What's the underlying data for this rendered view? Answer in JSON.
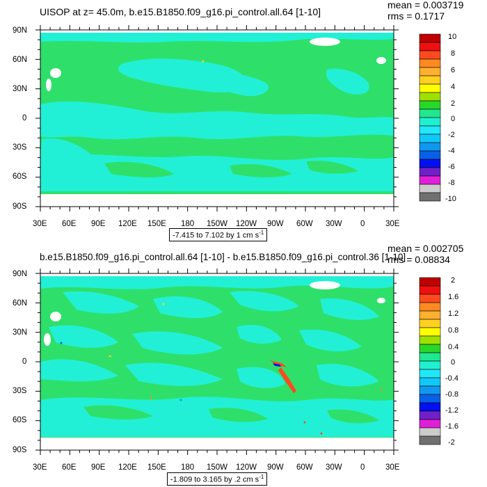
{
  "panels": [
    {
      "title": "UISOP at z=  45.0m, b.e15.B1850.f09_g16.pi_control.all.64 [1-10]",
      "mean": "mean = 0.003719",
      "rms": "rms = 0.1717",
      "contour_info": "-7.415 to 7.102 by 1 cm s",
      "contour_info_exp": "-1",
      "colorbar_labels": [
        "10",
        "8",
        "6",
        "4",
        "2",
        "0",
        "-2",
        "-4",
        "-6",
        "-8",
        "-10"
      ]
    },
    {
      "title": "b.e15.B1850.f09_g16.pi_control.all.64 [1-10] - b.e15.B1850.f09_g16.pi_control.36 [1-10]",
      "mean": "mean = 0.002705",
      "rms": "rms = 0.08834",
      "contour_info": "-1.809 to 3.165 by .2 cm s",
      "contour_info_exp": "-1",
      "colorbar_labels": [
        "2",
        "1.6",
        "1.2",
        "0.8",
        "0.4",
        "0",
        "-0.4",
        "-0.8",
        "-1.2",
        "-1.6",
        "-2"
      ]
    }
  ],
  "lat_labels": [
    "90N",
    "60N",
    "30N",
    "0",
    "30S",
    "60S",
    "90S"
  ],
  "lon_labels": [
    "30E",
    "60E",
    "90E",
    "120E",
    "150E",
    "180",
    "150W",
    "120W",
    "90W",
    "60W",
    "30W",
    "0",
    "30E"
  ],
  "colorbar_colors": [
    "#c00000",
    "#ee1010",
    "#ff4a20",
    "#ff8a20",
    "#ffb030",
    "#ffd020",
    "#ffff00",
    "#a0e000",
    "#28d828",
    "#20e890",
    "#20f0d0",
    "#20e8f8",
    "#10c8f8",
    "#1098f0",
    "#0860e8",
    "#0010f0",
    "#7020c8",
    "#e020d8",
    "#cccccc",
    "#707070"
  ],
  "colors": {
    "ocean_green": "#2ee06a",
    "cyan": "#22f0d6",
    "white": "#ffffff"
  }
}
